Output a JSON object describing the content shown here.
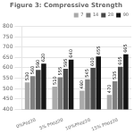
{
  "chart_data": {
    "type": "bar",
    "title": "Figure 3: Compressive Strength",
    "categories": [
      "0%Poz20",
      "5% Phoz20",
      "10%Phoz20",
      "15% Phoz20"
    ],
    "series": [
      {
        "name": "7",
        "color": "#aaaaaa",
        "values": [
          530,
          510,
          490,
          470
        ]
      },
      {
        "name": "14",
        "color": "#808080",
        "values": [
          560,
          555,
          545,
          535
        ]
      },
      {
        "name": "28",
        "color": "#484848",
        "values": [
          590,
          595,
          600,
          605
        ]
      },
      {
        "name": "90",
        "color": "#141414",
        "values": [
          620,
          640,
          655,
          665
        ]
      }
    ],
    "ylim": [
      400,
      800
    ],
    "yticks": [
      400,
      450,
      500,
      550,
      600,
      650,
      700,
      750,
      800
    ],
    "grid": true,
    "legend": "upper right",
    "data_labels": true
  }
}
